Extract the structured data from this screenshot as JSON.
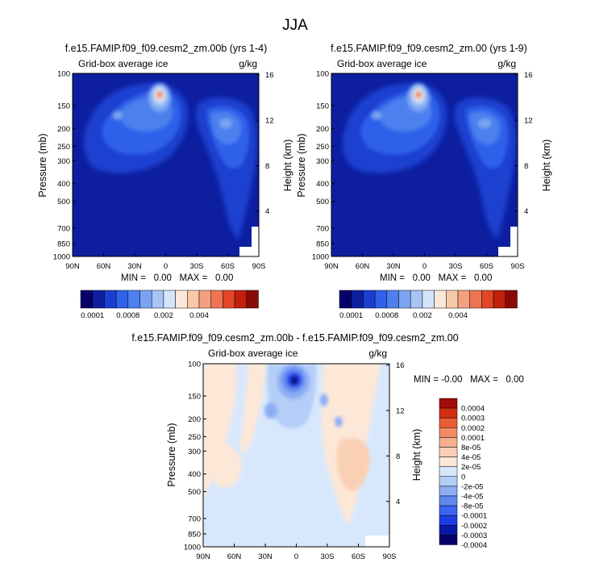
{
  "page": {
    "main_title": "JJA"
  },
  "palettes": {
    "abs": [
      "#08006a",
      "#0d1fa0",
      "#1a3fd0",
      "#2f61ea",
      "#4c80ee",
      "#7aa4f2",
      "#a8c4f6",
      "#d4e4fa",
      "#fce8d8",
      "#f8c8a8",
      "#f4a080",
      "#ee7454",
      "#e24626",
      "#c2200c",
      "#8c0a06"
    ],
    "diff": [
      "#08006a",
      "#0a18a8",
      "#1e3ce4",
      "#3c64ee",
      "#6088f0",
      "#8cacf4",
      "#b4cef8",
      "#d8e8fc",
      "#fde8d8",
      "#fad0b4",
      "#f6b08c",
      "#f28a64",
      "#ea5c36",
      "#d42e12",
      "#a20c06"
    ]
  },
  "chart_data": [
    {
      "type": "heatmap",
      "title": "f.e15.FAMIP.f09_f09.cesm2_zm.00b (yrs 1-4)",
      "left_label": "Grid-box average ice",
      "right_label": "g/kg",
      "ylabel": "Pressure (mb)",
      "ylabel_right": "Height (km)",
      "x_ticks": [
        "90N",
        "60N",
        "30N",
        "0",
        "30S",
        "60S",
        "90S"
      ],
      "y_ticks": [
        "100",
        "150",
        "200",
        "250",
        "300",
        "400",
        "500",
        "700",
        "850",
        "1000"
      ],
      "y_ticks_right": [
        "16",
        "12",
        "8",
        "4"
      ],
      "minmax_text": "MIN =   0.00   MAX =   0.00",
      "colorbar_labels": [
        "0.0001",
        "0.0008",
        "0.002",
        "0.004"
      ],
      "palette": "abs"
    },
    {
      "type": "heatmap",
      "title": "f.e15.FAMIP.f09_f09.cesm2_zm.00 (yrs 1-9)",
      "left_label": "Grid-box average ice",
      "right_label": "g/kg",
      "ylabel": "Pressure (mb)",
      "ylabel_right": "Height (km)",
      "x_ticks": [
        "90N",
        "60N",
        "30N",
        "0",
        "30S",
        "60S",
        "90S"
      ],
      "y_ticks": [
        "100",
        "150",
        "200",
        "250",
        "300",
        "400",
        "500",
        "700",
        "850",
        "1000"
      ],
      "y_ticks_right": [
        "16",
        "12",
        "8",
        "4"
      ],
      "minmax_text": "MIN =   0.00   MAX =   0.00",
      "colorbar_labels": [
        "0.0001",
        "0.0008",
        "0.002",
        "0.004"
      ],
      "palette": "abs"
    },
    {
      "type": "heatmap",
      "title": "f.e15.FAMIP.f09_f09.cesm2_zm.00b - f.e15.FAMIP.f09_f09.cesm2_zm.00",
      "left_label": "Grid-box average ice",
      "right_label": "g/kg",
      "ylabel": "Pressure (mb)",
      "ylabel_right": "Height (km)",
      "x_ticks": [
        "90N",
        "60N",
        "30N",
        "0",
        "30S",
        "60S",
        "90S"
      ],
      "y_ticks": [
        "100",
        "150",
        "200",
        "250",
        "300",
        "400",
        "500",
        "700",
        "850",
        "1000"
      ],
      "y_ticks_right": [
        "16",
        "12",
        "8",
        "4"
      ],
      "minmax_text": "MIN = -0.00   MAX =   0.00",
      "colorbar_labels": [
        "0.0004",
        "0.0003",
        "0.0002",
        "0.0001",
        "8e-05",
        "4e-05",
        "2e-05",
        "0",
        "-2e-05",
        "-4e-05",
        "-8e-05",
        "-0.0001",
        "-0.0002",
        "-0.0003",
        "-0.0004"
      ],
      "palette": "diff"
    }
  ]
}
